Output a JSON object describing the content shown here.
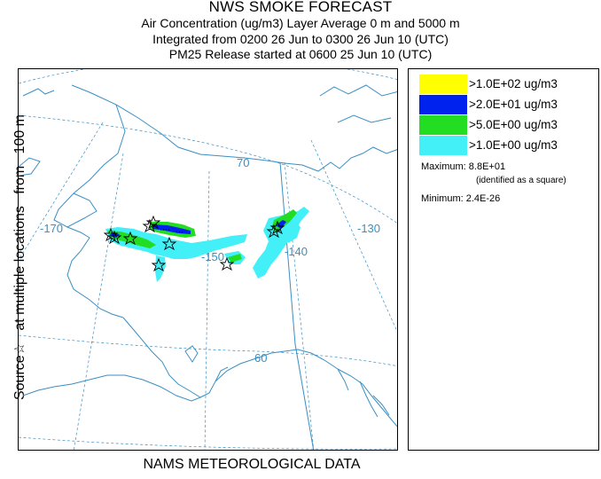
{
  "header": {
    "title": "NWS SMOKE FORECAST",
    "line1": "Air Concentration (ug/m3) Layer Average    0 m and  5000 m",
    "line2": "Integrated from 0200 26 Jun to 0300 26 Jun 10 (UTC)",
    "line3": "PM25 Release started at 0600 25 Jun 10 (UTC)"
  },
  "side_label": "Source☆   at multiple locations   from   100 m",
  "footer_label": "NAMS METEOROLOGICAL DATA",
  "map": {
    "graticule_labels": {
      "lon_170": "-170",
      "lon_150": "-150",
      "lon_140": "-140",
      "lon_130": "-130",
      "lat_70": "70",
      "lat_60": "60"
    },
    "colors": {
      "coast": "#3a8fc4",
      "graticule": "#3a8fc4",
      "border": "#3a8fc4"
    }
  },
  "legend": {
    "entries": [
      {
        "label": ">1.0E+02 ug/m3",
        "color": "#ffff00"
      },
      {
        "label": ">2.0E+01 ug/m3",
        "color": "#0022ee"
      },
      {
        "label": ">5.0E+00 ug/m3",
        "color": "#22dd22"
      },
      {
        "label": ">1.0E+00 ug/m3",
        "color": "#44f0f8"
      }
    ],
    "maximum_label": "Maximum: 8.8E+01",
    "maximum_note": "(identified as a square)",
    "minimum_label": "Minimum: 2.4E-26"
  }
}
